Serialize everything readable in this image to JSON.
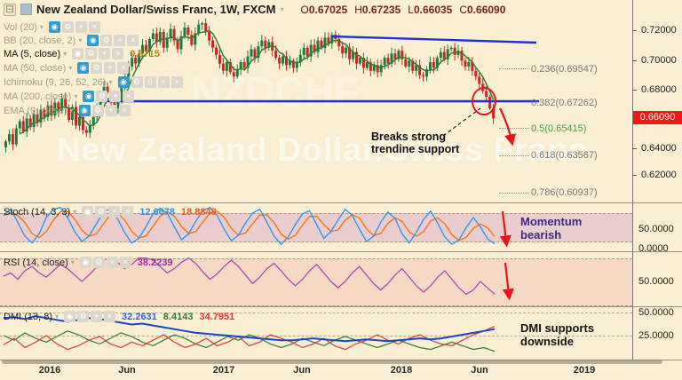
{
  "header": {
    "collapse_icon": "⊟",
    "title": "New Zealand Dollar/Swiss Franc, 1W, FXCM",
    "caret": "▾",
    "ohlc": [
      {
        "label": "O",
        "value": "0.67025"
      },
      {
        "label": "H",
        "value": "0.67235"
      },
      {
        "label": "L",
        "value": "0.66035"
      },
      {
        "label": "C",
        "value": "0.66090"
      }
    ]
  },
  "watermark": {
    "line1": "NZDCHF",
    "line2": "New Zealand Dollar/Swiss Franc"
  },
  "legend": {
    "items": [
      {
        "label": "Vol (20)"
      },
      {
        "label": "BB (20, close, 2)"
      },
      {
        "label": "MA (5, close)",
        "value": "0.6715"
      },
      {
        "label": "MA (50, close)"
      },
      {
        "label": "Ichimoku (9, 26, 52, 26)"
      },
      {
        "label": "MA (200, close)"
      },
      {
        "label": "EMA (9, close)"
      }
    ]
  },
  "price_axis": {
    "ticks": [
      "0.72000",
      "0.70000",
      "0.68000",
      "0.64000",
      "0.62000"
    ],
    "last_price": "0.66090"
  },
  "fib": {
    "levels": [
      {
        "label": "0.236(0.69547)",
        "color": "#7a7a7a"
      },
      {
        "label": "0.382(0.67262)",
        "color": "#7a7a7a"
      },
      {
        "label": "0.5(0.65415)",
        "color": "#43A047"
      },
      {
        "label": "0.618(0.63567)",
        "color": "#7a7a7a"
      },
      {
        "label": "0.786(0.60937)",
        "color": "#7a7a7a"
      }
    ]
  },
  "panes": {
    "stoch": {
      "label": "Stoch (14, 3, 3)",
      "k_value": "12.6678",
      "d_value": "18.8848",
      "axis": [
        "50.0000",
        "0.0000"
      ]
    },
    "rsi": {
      "label": "RSI (14, close)",
      "value": "38.2239",
      "axis": [
        "50.0000"
      ]
    },
    "dmi": {
      "label": "DMI (13, 8)",
      "adx_value": "32.2631",
      "plus_value": "8.4143",
      "minus_value": "34.7951",
      "axis": [
        "50.0000",
        "25.0000"
      ]
    }
  },
  "annotations": {
    "breaks_line1": "Breaks strong",
    "breaks_line2": "trendine support",
    "momentum_line1": "Momentum",
    "momentum_line2": "bearish",
    "dmi_line1": "DMI supports",
    "dmi_line2": "downside"
  },
  "time_axis": {
    "labels": [
      "2016",
      "Jun",
      "2017",
      "Jun",
      "2018",
      "Jun",
      "2019"
    ]
  },
  "colors": {
    "candle_up": "#177E3E",
    "candle_down": "#C9271F",
    "ma_line": "#2E7D32",
    "stoch_k": "#2196F3",
    "stoch_d": "#FF6D00",
    "rsi_line": "#AB47BC",
    "dmi_adx": "#1746C8",
    "dmi_plus": "#2E7D32",
    "dmi_minus": "#E53935",
    "trend_blue": "#2030D8",
    "arrow_red": "#E8141C",
    "badge_red": "#F21616"
  },
  "chart_data": {
    "type": "candlestick",
    "symbol": "NZDCHF",
    "timeframe": "1W",
    "title": "New Zealand Dollar/Swiss Franc, 1W, FXCM",
    "ohlc_current": {
      "open": 0.67025,
      "high": 0.67235,
      "low": 0.66035,
      "close": 0.6609
    },
    "price_ticks": [
      0.72,
      0.7,
      0.68,
      0.66,
      0.64,
      0.62
    ],
    "x_labels": [
      "2016",
      "Jun",
      "2017",
      "Jun",
      "2018",
      "Jun",
      "2019"
    ],
    "support_price": 0.67262,
    "fib_levels": [
      {
        "ratio": 0.236,
        "price": 0.69547
      },
      {
        "ratio": 0.382,
        "price": 0.67262
      },
      {
        "ratio": 0.5,
        "price": 0.65415
      },
      {
        "ratio": 0.618,
        "price": 0.63567
      },
      {
        "ratio": 0.786,
        "price": 0.60937
      }
    ],
    "closes": [
      0.645,
      0.65,
      0.643,
      0.654,
      0.659,
      0.652,
      0.661,
      0.655,
      0.664,
      0.658,
      0.667,
      0.662,
      0.67,
      0.663,
      0.672,
      0.666,
      0.675,
      0.668,
      0.66,
      0.669,
      0.656,
      0.662,
      0.653,
      0.651,
      0.656,
      0.662,
      0.67,
      0.676,
      0.683,
      0.679,
      0.672,
      0.668,
      0.674,
      0.682,
      0.69,
      0.697,
      0.703,
      0.699,
      0.706,
      0.712,
      0.708,
      0.716,
      0.72,
      0.714,
      0.721,
      0.71,
      0.717,
      0.723,
      0.715,
      0.709,
      0.718,
      0.724,
      0.719,
      0.712,
      0.72,
      0.726,
      0.727,
      0.721,
      0.715,
      0.71,
      0.705,
      0.699,
      0.694,
      0.7,
      0.693,
      0.69,
      0.695,
      0.7,
      0.696,
      0.704,
      0.709,
      0.703,
      0.711,
      0.715,
      0.71,
      0.714,
      0.708,
      0.703,
      0.699,
      0.704,
      0.698,
      0.701,
      0.696,
      0.7,
      0.705,
      0.71,
      0.704,
      0.712,
      0.707,
      0.715,
      0.71,
      0.717,
      0.713,
      0.719,
      0.716,
      0.711,
      0.706,
      0.71,
      0.702,
      0.707,
      0.699,
      0.703,
      0.696,
      0.7,
      0.694,
      0.698,
      0.693,
      0.698,
      0.703,
      0.699,
      0.706,
      0.702,
      0.708,
      0.702,
      0.697,
      0.701,
      0.694,
      0.698,
      0.691,
      0.69,
      0.695,
      0.7,
      0.696,
      0.703,
      0.707,
      0.702,
      0.709,
      0.71,
      0.705,
      0.708,
      0.701,
      0.697,
      0.7,
      0.694,
      0.69,
      0.685,
      0.68,
      0.676,
      0.668,
      0.661
    ],
    "indicators": {
      "stoch": {
        "k_last": 12.6678,
        "d_last": 18.8848,
        "range": [
          0,
          100
        ],
        "bands": [
          20,
          80
        ],
        "k": [
          75,
          88,
          60,
          30,
          15,
          35,
          70,
          88,
          92,
          70,
          40,
          18,
          30,
          55,
          82,
          90,
          68,
          38,
          15,
          25,
          50,
          78,
          90,
          80,
          50,
          22,
          35,
          62,
          85,
          92,
          75,
          45,
          20,
          32,
          58,
          80,
          88,
          60,
          30,
          12,
          28,
          55,
          78,
          85,
          55,
          25,
          40,
          65,
          88,
          75,
          45,
          18,
          30,
          60,
          82,
          68,
          35,
          15,
          38,
          66,
          84,
          58,
          28,
          12,
          22,
          48,
          70,
          50,
          24,
          13
        ]
      },
      "rsi": {
        "last": 38.2239,
        "bands": [
          30,
          70
        ],
        "values": [
          55,
          58,
          52,
          60,
          64,
          58,
          54,
          60,
          66,
          62,
          56,
          50,
          56,
          63,
          70,
          72,
          68,
          62,
          66,
          72,
          72,
          70,
          64,
          58,
          62,
          68,
          72,
          67,
          59,
          52,
          57,
          64,
          70,
          64,
          56,
          48,
          54,
          62,
          67,
          60,
          52,
          46,
          52,
          60,
          66,
          58,
          50,
          44,
          50,
          58,
          64,
          56,
          48,
          42,
          48,
          56,
          62,
          54,
          46,
          40,
          46,
          54,
          60,
          52,
          44,
          38,
          42,
          50,
          44,
          38
        ]
      },
      "dmi": {
        "adx_last": 32.2631,
        "plus_last": 8.4143,
        "minus_last": 34.7951,
        "adx": [
          44,
          45,
          43,
          46,
          44,
          42,
          40,
          42,
          44,
          43,
          41,
          39,
          37,
          38,
          36,
          34,
          32,
          30,
          28,
          27,
          26,
          25,
          24,
          23,
          22,
          21,
          20,
          20,
          21,
          22,
          21,
          20,
          19,
          20,
          21,
          20,
          19,
          20,
          21,
          22,
          21,
          22,
          24,
          26,
          28,
          30,
          32
        ],
        "plus": [
          25,
          20,
          28,
          22,
          18,
          24,
          30,
          26,
          20,
          16,
          22,
          28,
          24,
          18,
          14,
          20,
          26,
          22,
          16,
          12,
          18,
          24,
          20,
          26,
          22,
          16,
          12,
          16,
          22,
          18,
          14,
          20,
          24,
          20,
          16,
          12,
          16,
          20,
          16,
          12,
          10,
          14,
          18,
          14,
          10,
          12,
          8
        ],
        "minus": [
          15,
          22,
          12,
          18,
          25,
          16,
          10,
          14,
          20,
          24,
          16,
          12,
          18,
          14,
          20,
          26,
          18,
          12,
          16,
          22,
          14,
          18,
          24,
          14,
          18,
          26,
          22,
          18,
          12,
          16,
          22,
          14,
          10,
          16,
          20,
          26,
          20,
          16,
          22,
          26,
          20,
          16,
          14,
          20,
          26,
          30,
          35
        ]
      }
    }
  }
}
